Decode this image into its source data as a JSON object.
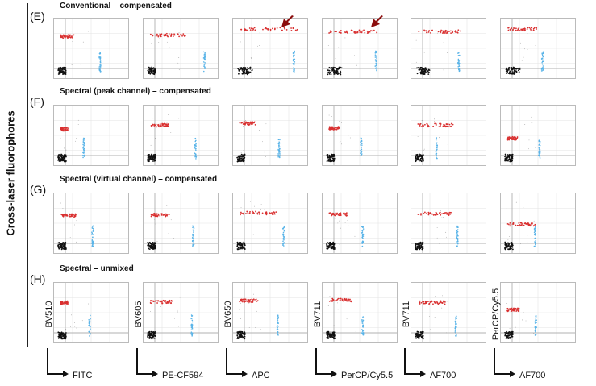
{
  "figure": {
    "vertical_title": "Cross-laser fluorophores",
    "rows": [
      {
        "letter": "(E)",
        "title": "Conventional – compensated"
      },
      {
        "letter": "(F)",
        "title": "Spectral (peak channel) – compensated"
      },
      {
        "letter": "(G)",
        "title": "Spectral (virtual channel) – compensated"
      },
      {
        "letter": "(H)",
        "title": "Spectral – unmixed"
      }
    ],
    "y_axis_labels": [
      "BV510",
      "BV605",
      "BV650",
      "BV711",
      "BV711",
      "PerCP/Cy5.5"
    ],
    "x_axis_labels": [
      "FITC",
      "PE-CF594",
      "APC",
      "PerCP/Cy5.5",
      "AF700",
      "AF700"
    ],
    "colors": {
      "positive_population": "#d93030",
      "single_stain": "#5ab4e8",
      "negative": "#111111",
      "marker_arrow": "#8b0d0d"
    },
    "arrows_panels": [
      [
        0,
        2
      ],
      [
        0,
        3
      ]
    ]
  },
  "chart_data": {
    "type": "scatter",
    "panels_layout": "4 rows x 6 columns",
    "note_rows": "E, F, G, H"
  }
}
